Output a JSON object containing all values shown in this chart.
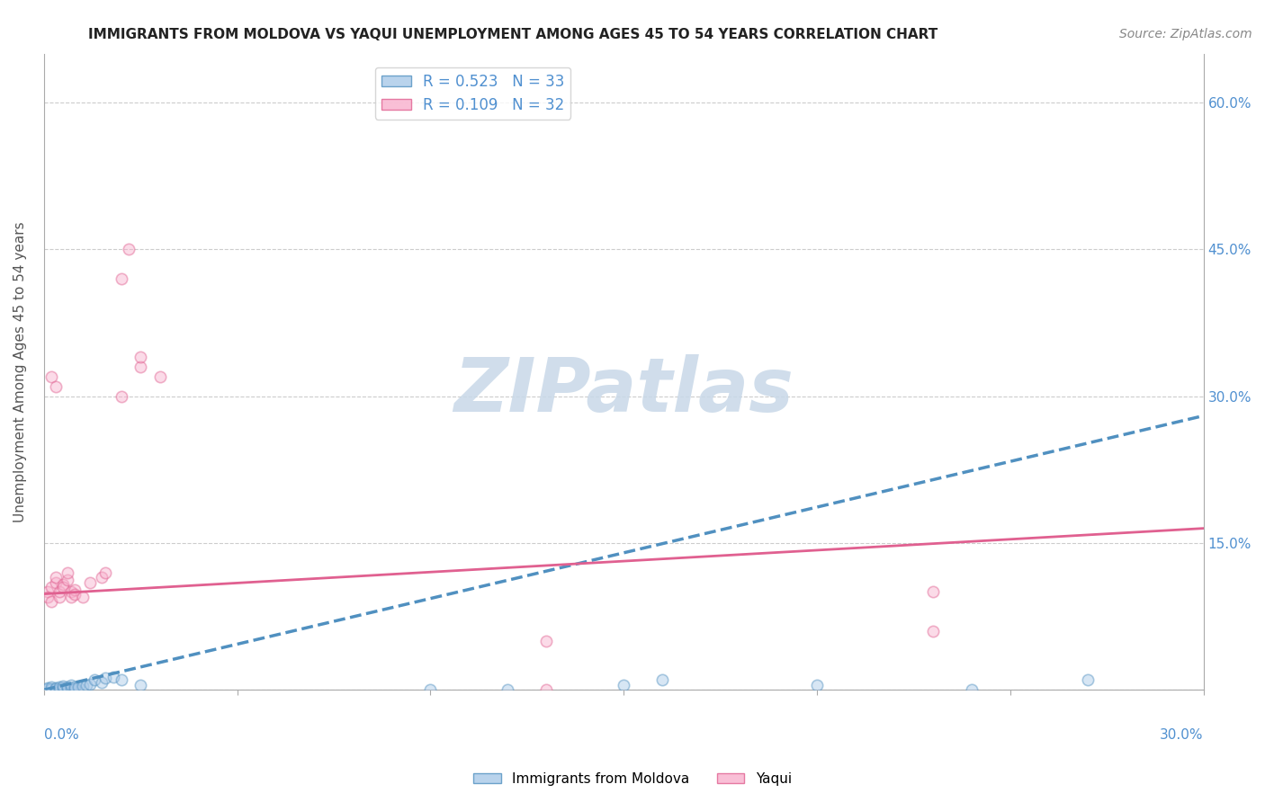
{
  "title": "IMMIGRANTS FROM MOLDOVA VS YAQUI UNEMPLOYMENT AMONG AGES 45 TO 54 YEARS CORRELATION CHART",
  "source": "Source: ZipAtlas.com",
  "ylabel": "Unemployment Among Ages 45 to 54 years",
  "legend_entries": [
    {
      "label": "R = 0.523   N = 33",
      "color": "#a8c8e8"
    },
    {
      "label": "R = 0.109   N = 32",
      "color": "#f8b0cc"
    }
  ],
  "moldova_scatter": [
    [
      0.001,
      0.001
    ],
    [
      0.001,
      0.002
    ],
    [
      0.002,
      0.001
    ],
    [
      0.002,
      0.003
    ],
    [
      0.003,
      0.001
    ],
    [
      0.003,
      0.002
    ],
    [
      0.004,
      0.001
    ],
    [
      0.004,
      0.003
    ],
    [
      0.005,
      0.002
    ],
    [
      0.005,
      0.004
    ],
    [
      0.006,
      0.001
    ],
    [
      0.006,
      0.003
    ],
    [
      0.007,
      0.002
    ],
    [
      0.007,
      0.005
    ],
    [
      0.008,
      0.001
    ],
    [
      0.008,
      0.003
    ],
    [
      0.009,
      0.003
    ],
    [
      0.01,
      0.004
    ],
    [
      0.011,
      0.005
    ],
    [
      0.012,
      0.006
    ],
    [
      0.013,
      0.01
    ],
    [
      0.015,
      0.008
    ],
    [
      0.016,
      0.012
    ],
    [
      0.018,
      0.013
    ],
    [
      0.02,
      0.01
    ],
    [
      0.025,
      0.005
    ],
    [
      0.1,
      0.0
    ],
    [
      0.12,
      0.0
    ],
    [
      0.15,
      0.005
    ],
    [
      0.16,
      0.01
    ],
    [
      0.2,
      0.005
    ],
    [
      0.24,
      0.0
    ],
    [
      0.27,
      0.01
    ]
  ],
  "yaqui_scatter": [
    [
      0.001,
      0.1
    ],
    [
      0.001,
      0.095
    ],
    [
      0.002,
      0.105
    ],
    [
      0.002,
      0.09
    ],
    [
      0.003,
      0.11
    ],
    [
      0.003,
      0.115
    ],
    [
      0.004,
      0.095
    ],
    [
      0.004,
      0.1
    ],
    [
      0.005,
      0.108
    ],
    [
      0.005,
      0.105
    ],
    [
      0.006,
      0.112
    ],
    [
      0.006,
      0.12
    ],
    [
      0.007,
      0.1
    ],
    [
      0.007,
      0.095
    ],
    [
      0.008,
      0.102
    ],
    [
      0.008,
      0.098
    ],
    [
      0.01,
      0.095
    ],
    [
      0.012,
      0.11
    ],
    [
      0.015,
      0.115
    ],
    [
      0.016,
      0.12
    ],
    [
      0.02,
      0.3
    ],
    [
      0.025,
      0.33
    ],
    [
      0.03,
      0.32
    ],
    [
      0.025,
      0.34
    ],
    [
      0.02,
      0.42
    ],
    [
      0.022,
      0.45
    ],
    [
      0.002,
      0.32
    ],
    [
      0.003,
      0.31
    ],
    [
      0.13,
      0.05
    ],
    [
      0.23,
      0.06
    ],
    [
      0.13,
      0.0
    ],
    [
      0.23,
      0.1
    ]
  ],
  "x_range": [
    0.0,
    0.3
  ],
  "y_range": [
    0.0,
    0.65
  ],
  "y_ticks": [
    0.0,
    0.15,
    0.3,
    0.45,
    0.6
  ],
  "right_tick_labels": [
    "60.0%",
    "45.0%",
    "30.0%",
    "15.0%",
    ""
  ],
  "scatter_size": 80,
  "scatter_alpha": 0.45,
  "scatter_linewidth": 1.2,
  "trendline_blue_x0": 0.0,
  "trendline_blue_y0": 0.0,
  "trendline_blue_x1": 0.3,
  "trendline_blue_y1": 0.28,
  "trendline_pink_x0": 0.0,
  "trendline_pink_y0": 0.098,
  "trendline_pink_x1": 0.3,
  "trendline_pink_y1": 0.165,
  "watermark_text": "ZIPatlas",
  "watermark_color": "#c8d8e8",
  "watermark_fontsize": 60,
  "background_color": "#ffffff",
  "grid_color": "#cccccc",
  "blue_color": "#a8c8e8",
  "blue_edge": "#5090c0",
  "pink_color": "#f8b0cc",
  "pink_edge": "#e06090",
  "right_axis_color": "#5090d0",
  "title_fontsize": 11,
  "source_fontsize": 10,
  "legend_fontsize": 12
}
